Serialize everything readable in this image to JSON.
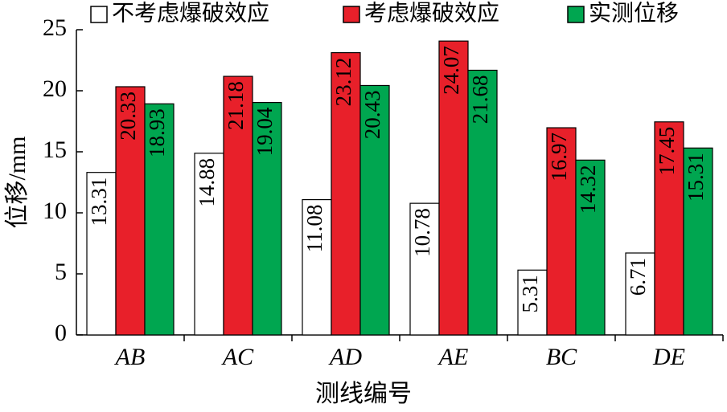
{
  "chart_data": {
    "type": "bar",
    "xlabel": "测线编号",
    "ylabel": "位移/mm",
    "categories": [
      "AB",
      "AC",
      "AD",
      "AE",
      "BC",
      "DE"
    ],
    "series": [
      {
        "name": "不考虑爆破效应",
        "color": "#ffffff",
        "values": [
          13.31,
          14.88,
          11.08,
          10.78,
          5.31,
          6.71
        ]
      },
      {
        "name": "考虑爆破效应",
        "color": "#e8202a",
        "values": [
          20.33,
          21.18,
          23.12,
          24.07,
          16.97,
          17.45
        ]
      },
      {
        "name": "实测位移",
        "color": "#00a650",
        "values": [
          18.93,
          19.04,
          20.43,
          21.68,
          14.32,
          15.31
        ]
      }
    ],
    "ylim": [
      0,
      25
    ],
    "yticks": [
      0,
      5,
      10,
      15,
      20,
      25
    ],
    "grid": false,
    "legend": "top"
  }
}
